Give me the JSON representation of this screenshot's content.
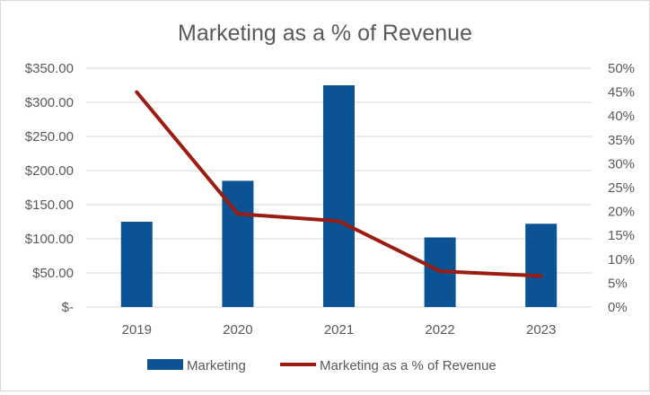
{
  "chart_data": {
    "type": "bar",
    "title": "Marketing as a % of Revenue",
    "categories": [
      "2019",
      "2020",
      "2021",
      "2022",
      "2023"
    ],
    "series": [
      {
        "name": "Marketing",
        "type": "bar",
        "axis": "left",
        "values": [
          125,
          185,
          325,
          102,
          122
        ],
        "color": "#0b5394"
      },
      {
        "name": "Marketing as a % of Revenue",
        "type": "line",
        "axis": "right",
        "values": [
          0.45,
          0.195,
          0.18,
          0.075,
          0.065
        ],
        "color": "#9b1c10"
      }
    ],
    "y_left": {
      "ylim": [
        0,
        350
      ],
      "ticks": [
        0,
        50,
        100,
        150,
        200,
        250,
        300,
        350
      ],
      "tick_labels": [
        "$-",
        "$50.00",
        "$100.00",
        "$150.00",
        "$200.00",
        "$250.00",
        "$300.00",
        "$350.00"
      ]
    },
    "y_right": {
      "ylim": [
        0,
        0.5
      ],
      "ticks": [
        0,
        0.05,
        0.1,
        0.15,
        0.2,
        0.25,
        0.3,
        0.35,
        0.4,
        0.45,
        0.5
      ],
      "tick_labels": [
        "0%",
        "5%",
        "10%",
        "15%",
        "20%",
        "25%",
        "30%",
        "35%",
        "40%",
        "45%",
        "50%"
      ]
    },
    "grid": true,
    "legend_position": "bottom"
  }
}
